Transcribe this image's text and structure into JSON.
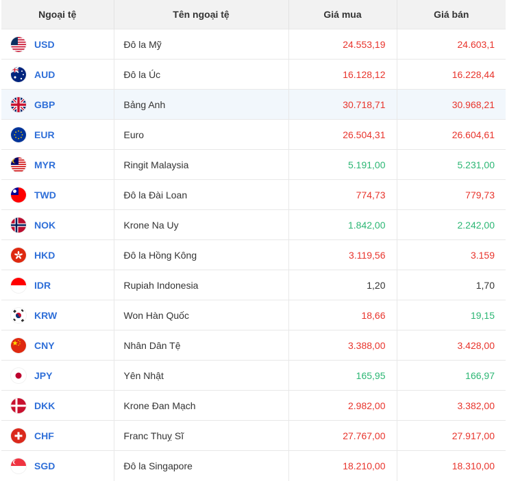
{
  "header": {
    "currency": "Ngoại tệ",
    "name": "Tên ngoại tệ",
    "buy": "Giá mua",
    "sell": "Giá bán"
  },
  "colors": {
    "up": "#e8332b",
    "down": "#2bb673",
    "neutral": "#333333",
    "code": "#2f6fd8"
  },
  "rows": [
    {
      "code": "USD",
      "name": "Đô la Mỹ",
      "buy": "24.553,19",
      "sell": "24.603,1",
      "buy_trend": "red",
      "sell_trend": "red",
      "flag": "us-flag-icon"
    },
    {
      "code": "AUD",
      "name": "Đô la Úc",
      "buy": "16.128,12",
      "sell": "16.228,44",
      "buy_trend": "red",
      "sell_trend": "red",
      "flag": "au-flag-icon"
    },
    {
      "code": "GBP",
      "name": "Bảng Anh",
      "buy": "30.718,71",
      "sell": "30.968,21",
      "buy_trend": "red",
      "sell_trend": "red",
      "flag": "gb-flag-icon"
    },
    {
      "code": "EUR",
      "name": "Euro",
      "buy": "26.504,31",
      "sell": "26.604,61",
      "buy_trend": "red",
      "sell_trend": "red",
      "flag": "eu-flag-icon"
    },
    {
      "code": "MYR",
      "name": "Ringit Malaysia",
      "buy": "5.191,00",
      "sell": "5.231,00",
      "buy_trend": "green",
      "sell_trend": "green",
      "flag": "my-flag-icon"
    },
    {
      "code": "TWD",
      "name": "Đô la Đài Loan",
      "buy": "774,73",
      "sell": "779,73",
      "buy_trend": "red",
      "sell_trend": "red",
      "flag": "tw-flag-icon"
    },
    {
      "code": "NOK",
      "name": "Krone Na Uy",
      "buy": "1.842,00",
      "sell": "2.242,00",
      "buy_trend": "green",
      "sell_trend": "green",
      "flag": "no-flag-icon"
    },
    {
      "code": "HKD",
      "name": "Đô la Hồng Kông",
      "buy": "3.119,56",
      "sell": "3.159",
      "buy_trend": "red",
      "sell_trend": "red",
      "flag": "hk-flag-icon"
    },
    {
      "code": "IDR",
      "name": "Rupiah Indonesia",
      "buy": "1,20",
      "sell": "1,70",
      "buy_trend": "dark",
      "sell_trend": "dark",
      "flag": "id-flag-icon"
    },
    {
      "code": "KRW",
      "name": "Won Hàn Quốc",
      "buy": "18,66",
      "sell": "19,15",
      "buy_trend": "red",
      "sell_trend": "green",
      "flag": "kr-flag-icon"
    },
    {
      "code": "CNY",
      "name": "Nhân Dân Tệ",
      "buy": "3.388,00",
      "sell": "3.428,00",
      "buy_trend": "red",
      "sell_trend": "red",
      "flag": "cn-flag-icon"
    },
    {
      "code": "JPY",
      "name": "Yên Nhật",
      "buy": "165,95",
      "sell": "166,97",
      "buy_trend": "green",
      "sell_trend": "green",
      "flag": "jp-flag-icon"
    },
    {
      "code": "DKK",
      "name": "Krone Đan Mạch",
      "buy": "2.982,00",
      "sell": "3.382,00",
      "buy_trend": "red",
      "sell_trend": "red",
      "flag": "dk-flag-icon"
    },
    {
      "code": "CHF",
      "name": "Franc Thuỵ Sĩ",
      "buy": "27.767,00",
      "sell": "27.917,00",
      "buy_trend": "red",
      "sell_trend": "red",
      "flag": "ch-flag-icon"
    },
    {
      "code": "SGD",
      "name": "Đô la Singapore",
      "buy": "18.210,00",
      "sell": "18.310,00",
      "buy_trend": "red",
      "sell_trend": "red",
      "flag": "sg-flag-icon"
    }
  ]
}
